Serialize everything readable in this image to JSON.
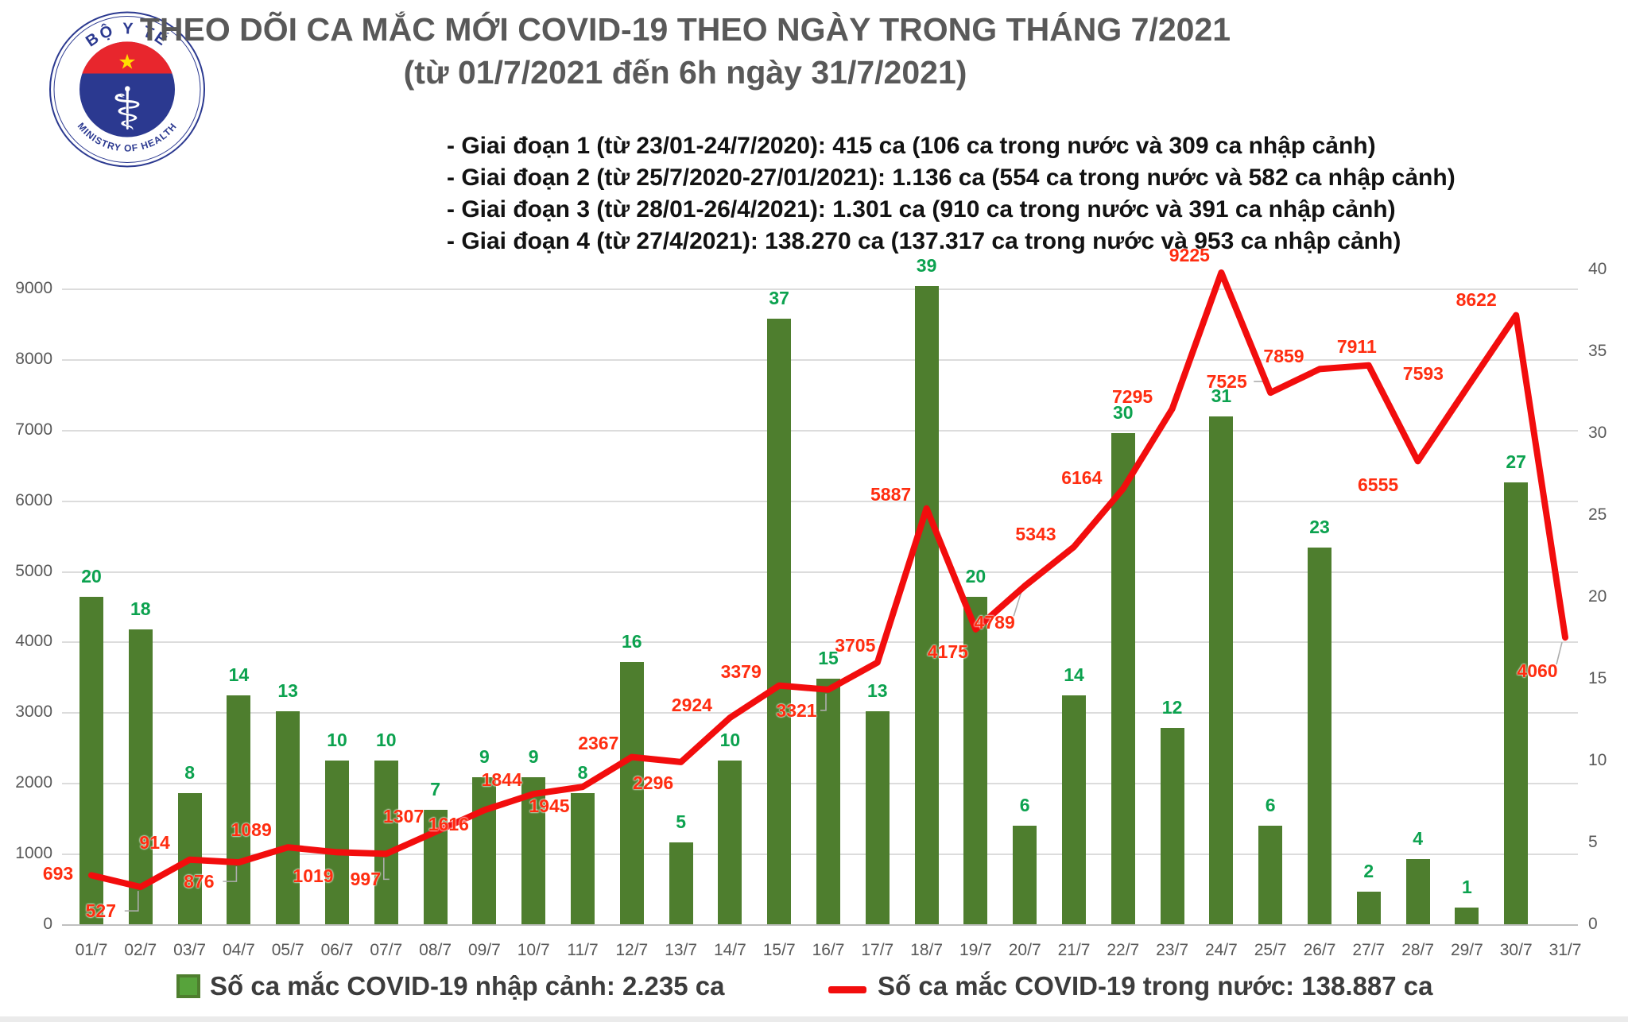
{
  "logo": {
    "top_text": "BỘ Y TẾ",
    "bottom_text": "MINISTRY OF HEALTH"
  },
  "notes": [
    "- Giai đoạn 1 (từ 23/01-24/7/2020): 415 ca (106 ca trong nước và 309 ca nhập cảnh)",
    "- Giai đoạn 2 (từ 25/7/2020-27/01/2021): 1.136 ca (554 ca trong nước và 582 ca nhập cảnh)",
    "- Giai đoạn 3 (từ 28/01-26/4/2021): 1.301 ca (910 ca trong nước và 391 ca nhập cảnh)",
    "- Giai đoạn 4 (từ 27/4/2021): 138.270 ca (137.317 ca trong nước và 953 ca nhập cảnh)"
  ],
  "legend": [
    {
      "label": "Số ca mắc COVID-19 nhập cảnh: 2.235 ca",
      "marker": "square",
      "color": "#4E7E2E"
    },
    {
      "label": "Số ca mắc COVID-19 trong nước: 138.887 ca",
      "marker": "dash",
      "color": "#F20D0D"
    }
  ],
  "chart_data": {
    "type": "bar+line",
    "title": "THEO DÕI CA MẮC MỚI COVID-19 THEO NGÀY TRONG THÁNG 7/2021",
    "subtitle": "(từ 01/7/2021 đến 6h ngày 31/7/2021)",
    "categories": [
      "01/7",
      "02/7",
      "03/7",
      "04/7",
      "05/7",
      "06/7",
      "07/7",
      "08/7",
      "09/7",
      "10/7",
      "11/7",
      "12/7",
      "13/7",
      "14/7",
      "15/7",
      "16/7",
      "17/7",
      "18/7",
      "19/7",
      "20/7",
      "21/7",
      "22/7",
      "23/7",
      "24/7",
      "25/7",
      "26/7",
      "27/7",
      "28/7",
      "29/7",
      "30/7",
      "31/7"
    ],
    "series": [
      {
        "name": "Số ca mắc COVID-19 nhập cảnh",
        "type": "bar",
        "axis": "right",
        "color": "#4E7E2E",
        "values": [
          20,
          18,
          8,
          14,
          13,
          10,
          10,
          7,
          9,
          9,
          8,
          16,
          5,
          10,
          37,
          15,
          13,
          39,
          20,
          6,
          14,
          30,
          12,
          31,
          6,
          23,
          2,
          4,
          1,
          27,
          null
        ]
      },
      {
        "name": "Số ca mắc COVID-19 trong nước",
        "type": "line",
        "axis": "left",
        "color": "#F20D0D",
        "values": [
          693,
          527,
          914,
          876,
          1089,
          1019,
          997,
          1307,
          1616,
          1844,
          1945,
          2367,
          2296,
          2924,
          3379,
          3321,
          3705,
          5887,
          4175,
          4789,
          5343,
          6164,
          7295,
          9225,
          7525,
          7859,
          7911,
          6555,
          7593,
          8622,
          4060
        ]
      }
    ],
    "left_axis": {
      "min": 0,
      "max": 9000,
      "step": 1000,
      "ticks": [
        0,
        1000,
        2000,
        3000,
        4000,
        5000,
        6000,
        7000,
        8000,
        9000
      ]
    },
    "right_axis": {
      "min": 0,
      "max": 40,
      "step": 5,
      "ticks": [
        0,
        5,
        10,
        15,
        20,
        25,
        30,
        35,
        40
      ]
    },
    "grid": true,
    "legend_position": "bottom"
  }
}
